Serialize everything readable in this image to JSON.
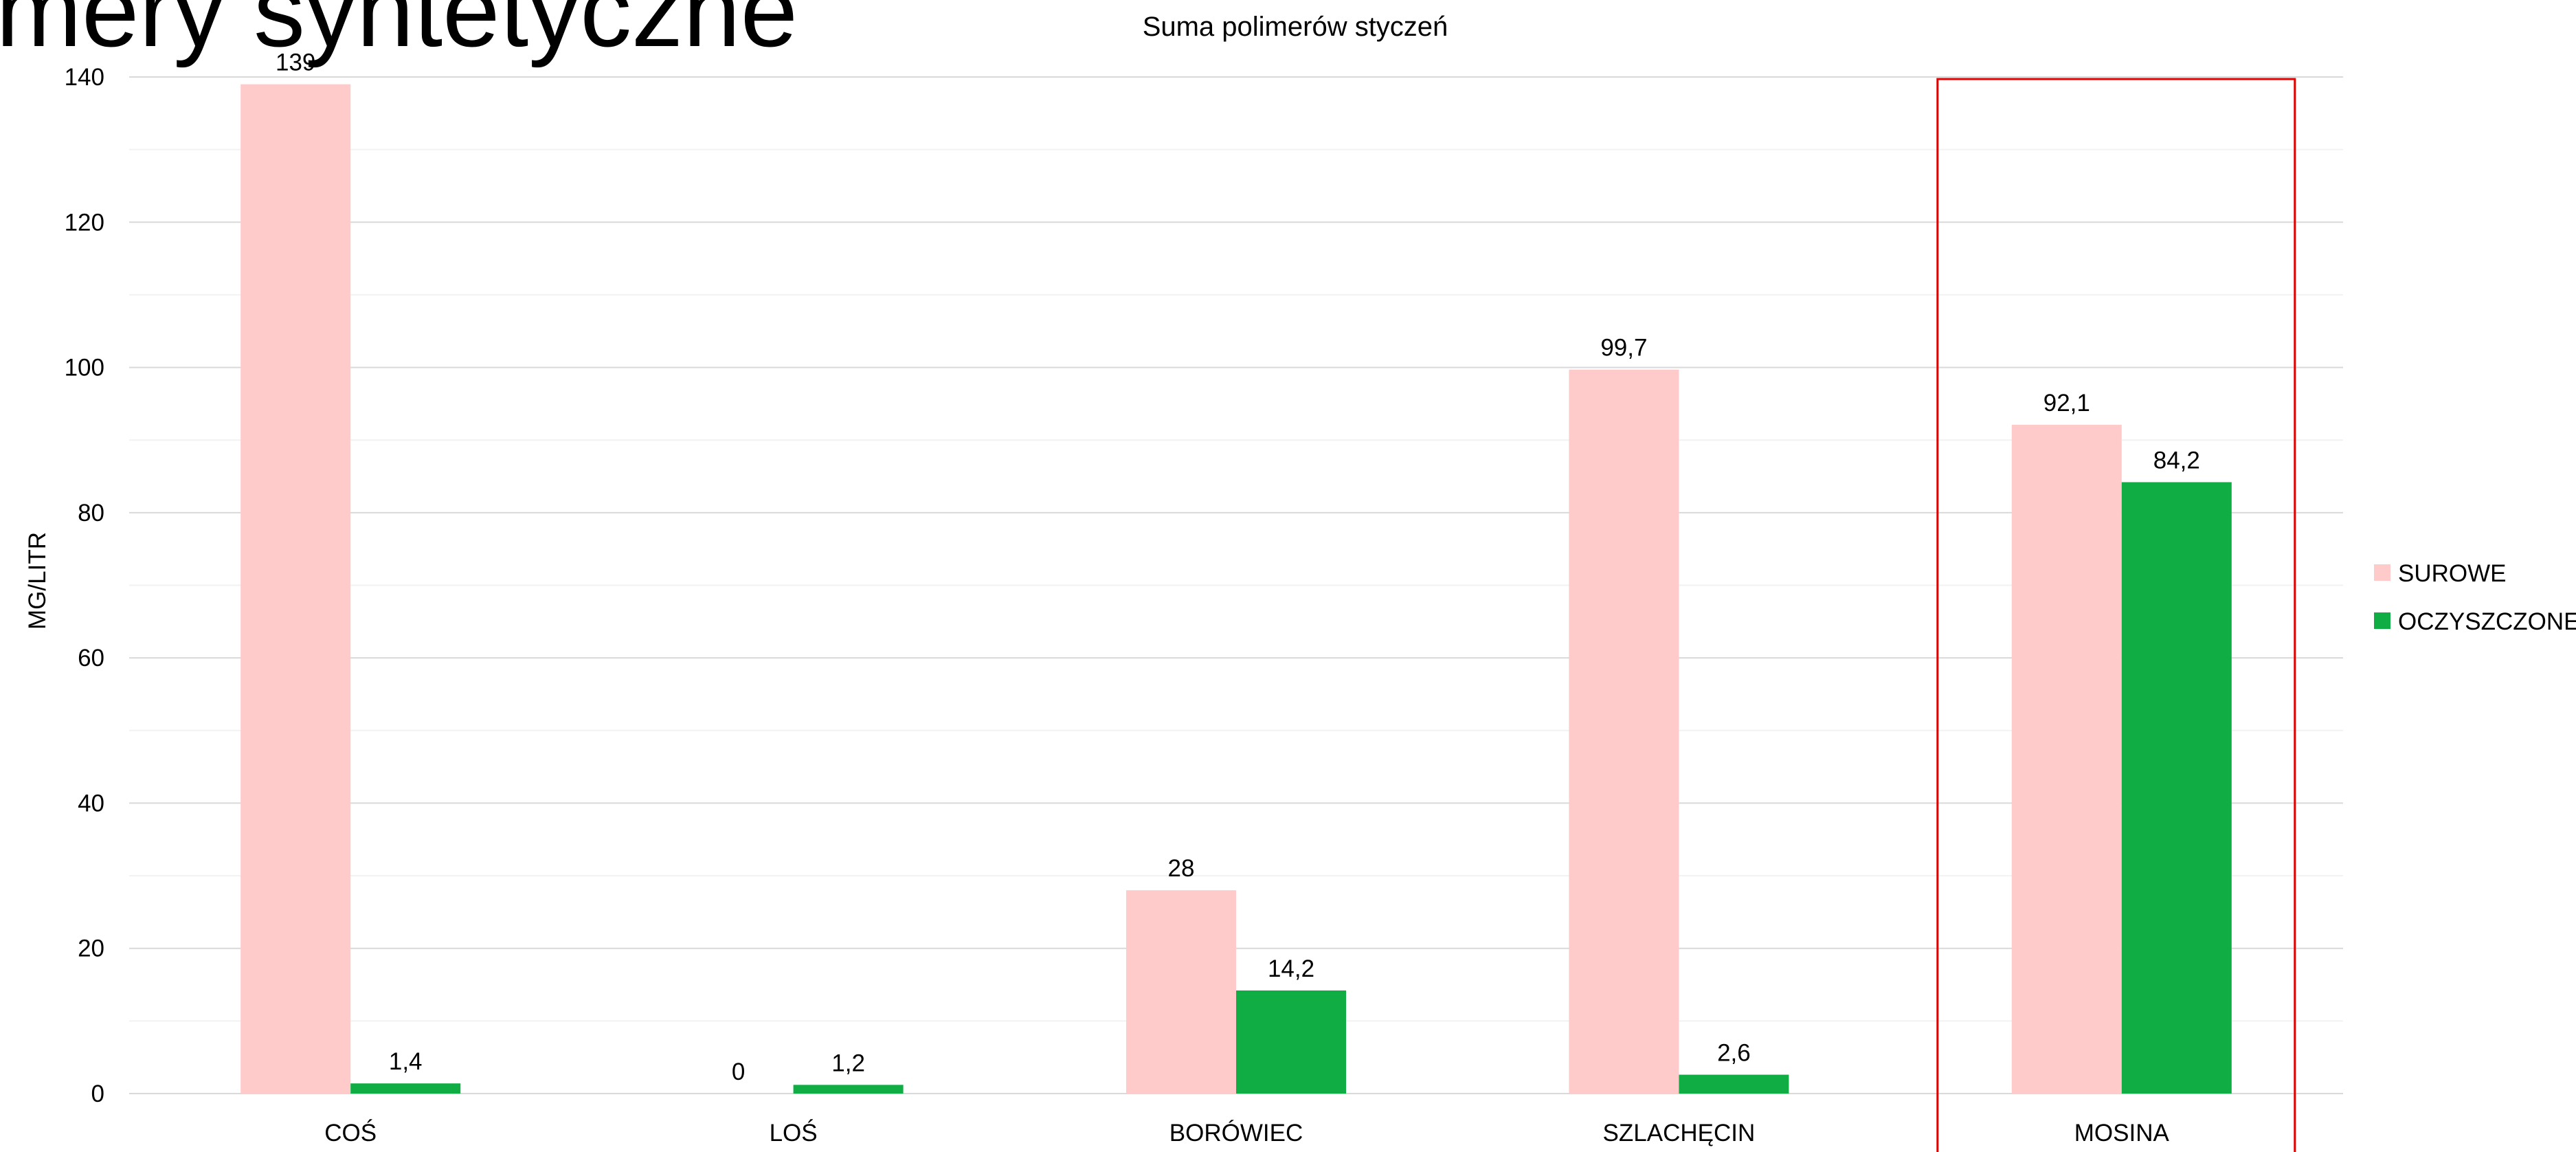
{
  "slide": {
    "heading": "mery syntetyczne"
  },
  "colors": {
    "surowe": "#FFCACA",
    "oczyszczone": "#10AD45",
    "gridline": "#D9D9D9",
    "minor_gridline": "#F2F2F2",
    "highlight_box": "#E00000"
  },
  "chart_data": {
    "type": "bar",
    "title": "Suma polimerów styczeń",
    "xlabel": "",
    "ylabel": "MG/LITR",
    "ylim": [
      0,
      140
    ],
    "yticks": [
      0,
      20,
      40,
      60,
      80,
      100,
      120,
      140
    ],
    "grid": true,
    "legend_position": "right",
    "categories": [
      "COŚ",
      "LOŚ",
      "BORÓWIEC",
      "SZLACHĘCIN",
      "MOSINA"
    ],
    "series": [
      {
        "name": "SUROWE",
        "values": [
          139,
          0,
          28,
          99.7,
          92.1
        ],
        "labels": [
          "139",
          "0",
          "28",
          "99,7",
          "92,1"
        ]
      },
      {
        "name": "OCZYSZCZONE",
        "values": [
          1.4,
          1.2,
          14.2,
          2.6,
          84.2
        ],
        "labels": [
          "1,4",
          "1,2",
          "14,2",
          "2,6",
          "84,2"
        ]
      }
    ],
    "highlighted_category": "MOSINA"
  }
}
